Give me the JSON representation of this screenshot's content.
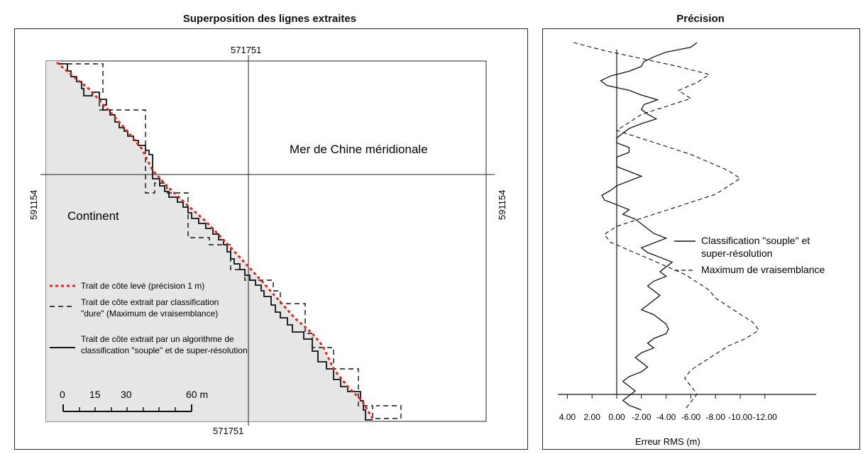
{
  "left_panel": {
    "title": "Superposition des lignes extraites",
    "top_coord": "571751",
    "bottom_coord": "571751",
    "left_coord": "591154",
    "right_coord": "591154",
    "sea_label": "Mer de Chine méridionale",
    "land_label": "Continent",
    "scale_labels": [
      "0",
      "15",
      "30",
      "60 m"
    ],
    "legend": [
      {
        "line1": "Trait de côte levé (précision 1 m)",
        "line2": "",
        "style": "dotted-red"
      },
      {
        "line1": "Trait de côte extrait par classification",
        "line2": "\"dure\" (Maximum de vraisemblance)",
        "style": "dashed"
      },
      {
        "line1": "Trait de côte extrait par un algorithme de",
        "line2": "classification \"souple\" et de super-résolution",
        "style": "solid"
      }
    ]
  },
  "right_panel": {
    "title": "Précision",
    "xlabel": "Erreur RMS (m)",
    "tick_labels": [
      "4.00",
      "2.00",
      "0.00",
      "-2.00",
      "-4.00",
      "-6.00",
      "-8.00",
      "-10.00",
      "-12.00"
    ],
    "legend": [
      {
        "line1": "Classification \"souple\" et",
        "line2": "super-résolution",
        "style": "solid"
      },
      {
        "line1": "Maximum de vraisemblance",
        "line2": "",
        "style": "dashed"
      }
    ]
  },
  "colors": {
    "reference": "#e8231f",
    "land_fill": "#e6e6e6",
    "line": "#111111"
  },
  "chart_data": [
    {
      "type": "line",
      "title": "Superposition des lignes extraites",
      "series": [
        {
          "name": "Trait de côte levé (précision 1 m)",
          "style": "dotted-red"
        },
        {
          "name": "Trait de côte extrait par classification \"dure\" (Maximum de vraisemblance)",
          "style": "dashed"
        },
        {
          "name": "Trait de côte extrait par un algorithme de classification \"souple\" et de super-résolution",
          "style": "solid"
        }
      ]
    },
    {
      "type": "line",
      "title": "Précision",
      "xlabel": "Erreur RMS (m)",
      "xlim": [
        4.6,
        -12.5
      ],
      "x_ticks": [
        4,
        2,
        0,
        -2,
        -4,
        -6,
        -8,
        -10,
        -12
      ],
      "series": [
        {
          "name": "Classification \"souple\" et super-résolution",
          "values": [
            -6.5,
            -6.0,
            -4.0,
            -3.0,
            -2.2,
            -2.0,
            -1.0,
            0.5,
            1.3,
            0.8,
            -1.0,
            -2.0,
            -3.3,
            -2.2,
            -2.0,
            -2.5,
            -3.2,
            -2.0,
            -1.0,
            -0.5,
            0,
            0,
            -1.0,
            -1.0,
            0,
            0,
            0,
            -1.0,
            -2.0,
            -1.0,
            0,
            0.5,
            1.2,
            1.0,
            0,
            -1.0,
            -0.5,
            -1.5,
            -2.0,
            -2.5,
            -3.0,
            -4.0,
            -3.0,
            -2.0,
            -2.5,
            -3.5,
            -4.5,
            -4.0,
            -3.5,
            -4.0,
            -3.0,
            -2.5,
            -3.0,
            -3.5,
            -3.0,
            -2.5,
            -2.0,
            -3.0,
            -3.5,
            -4.0,
            -4.2,
            -4.0,
            -3.0,
            -2.5,
            -3.0,
            -2.0,
            -1.5,
            -2.0,
            -2.5,
            -2.0,
            -1.0,
            -0.5,
            -1.0,
            -1.5,
            -1.0,
            -0.5,
            -1.0,
            -2.0
          ],
          "values_note_y_from_top": true
        },
        {
          "name": "Maximum de vraisemblance",
          "values": [
            3.5,
            1.0,
            -2.0,
            -5.0,
            -7.5,
            -6.5,
            -5.0,
            -6.0,
            -4.0,
            -2.0,
            -1.0,
            0,
            -2.0,
            -4.0,
            -6.0,
            -7.5,
            -9.0,
            -10.0,
            -9.0,
            -8.0,
            -6.0,
            -4.0,
            -2.0,
            0,
            1.0,
            0.5,
            -1.0,
            -2.5,
            -4.0,
            -5.5,
            -6.5,
            -7.5,
            -8.0,
            -9.0,
            -10.0,
            -11.0,
            -11.5,
            -10.5,
            -9.0,
            -8.0,
            -7.0,
            -6.0,
            -5.5,
            -6.0,
            -6.5,
            -6.0,
            -5.5
          ]
        }
      ]
    }
  ]
}
